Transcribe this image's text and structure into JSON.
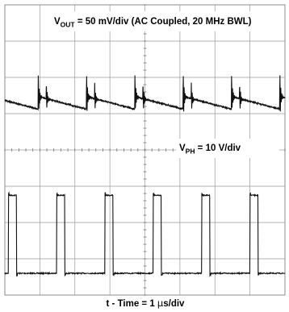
{
  "chart_data": {
    "type": "line",
    "title": "",
    "grid": true,
    "grid_divisions": {
      "x": 8,
      "y": 8
    },
    "xlabel": {
      "prefix": "t - Time = 1 ",
      "unit_symbol": "µ",
      "suffix": "s/div"
    },
    "ylabel": "",
    "traces": [
      {
        "label": {
          "main": "V",
          "sub": "OUT",
          "rest": " = 50 mV/div (AC Coupled, 20 MHz BWL)"
        },
        "description": "output voltage ripple",
        "period_us": 1.38,
        "first_edge_us": 0.95,
        "baseline_div_from_top": 2.7,
        "slope_div_per_period": 0.35,
        "spike_amplitude_div": 0.75
      },
      {
        "label": {
          "main": "V",
          "sub": "PH",
          "rest": " = 10 V/div"
        },
        "description": "switch node",
        "period_us": 1.38,
        "first_rise_us": 0.1,
        "pulse_width_us": 0.23,
        "high_div_from_top": 5.25,
        "low_div_from_top": 7.4
      }
    ]
  }
}
